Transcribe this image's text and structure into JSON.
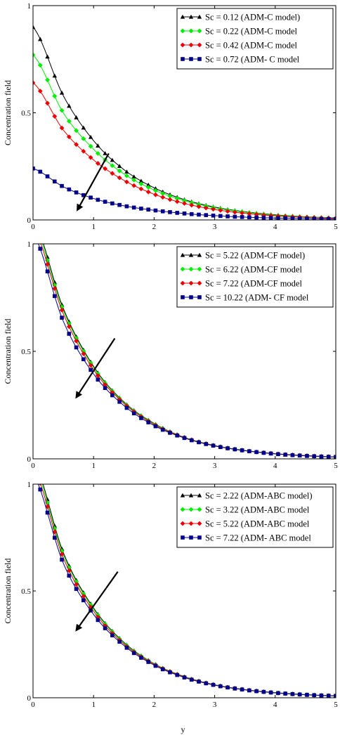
{
  "chart_data": [
    {
      "type": "line",
      "title": "",
      "xlabel": "",
      "ylabel": "Concentration field",
      "xlim": [
        0,
        5
      ],
      "ylim": [
        0,
        1
      ],
      "x_ticks": [
        "0",
        "1",
        "2",
        "3",
        "4",
        "5"
      ],
      "y_ticks": [
        "0",
        "0.5",
        "1"
      ],
      "grid": false,
      "legend_position": "top-right",
      "series": [
        {
          "name": "Sc = 0.12 (ADM-C model)",
          "color": "#000000",
          "marker": "triangle",
          "x": [
            0,
            0.5,
            1,
            1.5,
            2,
            2.5,
            3,
            3.5,
            4,
            4.5,
            5
          ],
          "y": [
            0.9,
            0.58,
            0.37,
            0.235,
            0.15,
            0.095,
            0.06,
            0.038,
            0.024,
            0.015,
            0.01
          ]
        },
        {
          "name": "Sc = 0.22 (ADM-C model",
          "color": "#00ee00",
          "marker": "diamond",
          "x": [
            0,
            0.5,
            1,
            1.5,
            2,
            2.5,
            3,
            3.5,
            4,
            4.5,
            5
          ],
          "y": [
            0.77,
            0.5,
            0.33,
            0.215,
            0.14,
            0.09,
            0.057,
            0.036,
            0.022,
            0.014,
            0.009
          ]
        },
        {
          "name": "Sc = 0.42 (ADM-C model",
          "color": "#ee0000",
          "marker": "diamond",
          "x": [
            0,
            0.5,
            1,
            1.5,
            2,
            2.5,
            3,
            3.5,
            4,
            4.5,
            5
          ],
          "y": [
            0.64,
            0.42,
            0.28,
            0.185,
            0.12,
            0.077,
            0.049,
            0.031,
            0.019,
            0.012,
            0.008
          ]
        },
        {
          "name": "Sc = 0.72  (ADM- C model",
          "color": "#00008b",
          "marker": "square",
          "x": [
            0,
            0.5,
            1,
            1.5,
            2,
            2.5,
            3,
            3.5,
            4,
            4.5,
            5
          ],
          "y": [
            0.24,
            0.155,
            0.1,
            0.066,
            0.045,
            0.03,
            0.02,
            0.013,
            0.009,
            0.006,
            0.004
          ]
        }
      ],
      "annotations": [
        {
          "type": "arrow",
          "from": [
            1.25,
            0.31
          ],
          "to": [
            0.72,
            0.04
          ]
        }
      ]
    },
    {
      "type": "line",
      "title": "",
      "xlabel": "",
      "ylabel": "Concentration field",
      "xlim": [
        0,
        5
      ],
      "ylim": [
        0,
        1
      ],
      "x_ticks": [
        "0",
        "1",
        "2",
        "3",
        "4",
        "5"
      ],
      "y_ticks": [
        "0",
        "0.5",
        "1"
      ],
      "grid": false,
      "legend_position": "top-right",
      "series": [
        {
          "name": "Sc = 5.22 (ADM-CF model)",
          "color": "#000000",
          "marker": "triangle",
          "x": [
            0,
            0.5,
            1,
            1.5,
            2,
            2.5,
            3,
            3.5,
            4,
            4.5,
            5
          ],
          "y": [
            1.12,
            0.7,
            0.43,
            0.265,
            0.165,
            0.1,
            0.062,
            0.039,
            0.024,
            0.015,
            0.009
          ]
        },
        {
          "name": "Sc = 6.22 (ADM-CF model",
          "color": "#00ee00",
          "marker": "diamond",
          "x": [
            0,
            0.5,
            1,
            1.5,
            2,
            2.5,
            3,
            3.5,
            4,
            4.5,
            5
          ],
          "y": [
            1.1,
            0.69,
            0.425,
            0.262,
            0.163,
            0.1,
            0.062,
            0.039,
            0.024,
            0.015,
            0.009
          ]
        },
        {
          "name": "Sc = 7.22 (ADM-CF model",
          "color": "#ee0000",
          "marker": "diamond",
          "x": [
            0,
            0.5,
            1,
            1.5,
            2,
            2.5,
            3,
            3.5,
            4,
            4.5,
            5
          ],
          "y": [
            1.08,
            0.675,
            0.415,
            0.258,
            0.16,
            0.099,
            0.061,
            0.038,
            0.024,
            0.015,
            0.009
          ]
        },
        {
          "name": "Sc = 10.22 (ADM- CF model",
          "color": "#00008b",
          "marker": "square",
          "x": [
            0,
            0.5,
            1,
            1.5,
            2,
            2.5,
            3,
            3.5,
            4,
            4.5,
            5
          ],
          "y": [
            1.05,
            0.64,
            0.395,
            0.248,
            0.155,
            0.097,
            0.06,
            0.038,
            0.023,
            0.014,
            0.009
          ]
        }
      ],
      "annotations": [
        {
          "type": "arrow",
          "from": [
            1.35,
            0.56
          ],
          "to": [
            0.7,
            0.28
          ]
        }
      ]
    },
    {
      "type": "line",
      "title": "",
      "xlabel": "y",
      "ylabel": "Concentration field",
      "xlim": [
        0,
        5
      ],
      "ylim": [
        0,
        1
      ],
      "x_ticks": [
        "0",
        "1",
        "2",
        "3",
        "4",
        "5"
      ],
      "y_ticks": [
        "0",
        "0.5",
        "1"
      ],
      "grid": false,
      "legend_position": "top-right",
      "series": [
        {
          "name": "Sc = 2.22 (ADM-ABC model)",
          "color": "#000000",
          "marker": "triangle",
          "x": [
            0,
            0.5,
            1,
            1.5,
            2,
            2.5,
            3,
            3.5,
            4,
            4.5,
            5
          ],
          "y": [
            1.12,
            0.68,
            0.42,
            0.26,
            0.16,
            0.099,
            0.061,
            0.038,
            0.024,
            0.015,
            0.009
          ]
        },
        {
          "name": "Sc = 3.22 (ADM-ABC model",
          "color": "#00ee00",
          "marker": "diamond",
          "x": [
            0,
            0.5,
            1,
            1.5,
            2,
            2.5,
            3,
            3.5,
            4,
            4.5,
            5
          ],
          "y": [
            1.1,
            0.67,
            0.415,
            0.257,
            0.159,
            0.098,
            0.061,
            0.038,
            0.024,
            0.015,
            0.009
          ]
        },
        {
          "name": "Sc = 5.22 (ADM-ABC model",
          "color": "#ee0000",
          "marker": "diamond",
          "x": [
            0,
            0.5,
            1,
            1.5,
            2,
            2.5,
            3,
            3.5,
            4,
            4.5,
            5
          ],
          "y": [
            1.08,
            0.655,
            0.405,
            0.252,
            0.157,
            0.097,
            0.06,
            0.038,
            0.023,
            0.014,
            0.009
          ]
        },
        {
          "name": "Sc = 7.22 (ADM- ABC model",
          "color": "#00008b",
          "marker": "square",
          "x": [
            0,
            0.5,
            1,
            1.5,
            2,
            2.5,
            3,
            3.5,
            4,
            4.5,
            5
          ],
          "y": [
            1.05,
            0.63,
            0.39,
            0.245,
            0.153,
            0.095,
            0.059,
            0.037,
            0.023,
            0.014,
            0.009
          ]
        }
      ],
      "annotations": [
        {
          "type": "arrow",
          "from": [
            1.4,
            0.59
          ],
          "to": [
            0.7,
            0.31
          ]
        }
      ]
    }
  ]
}
